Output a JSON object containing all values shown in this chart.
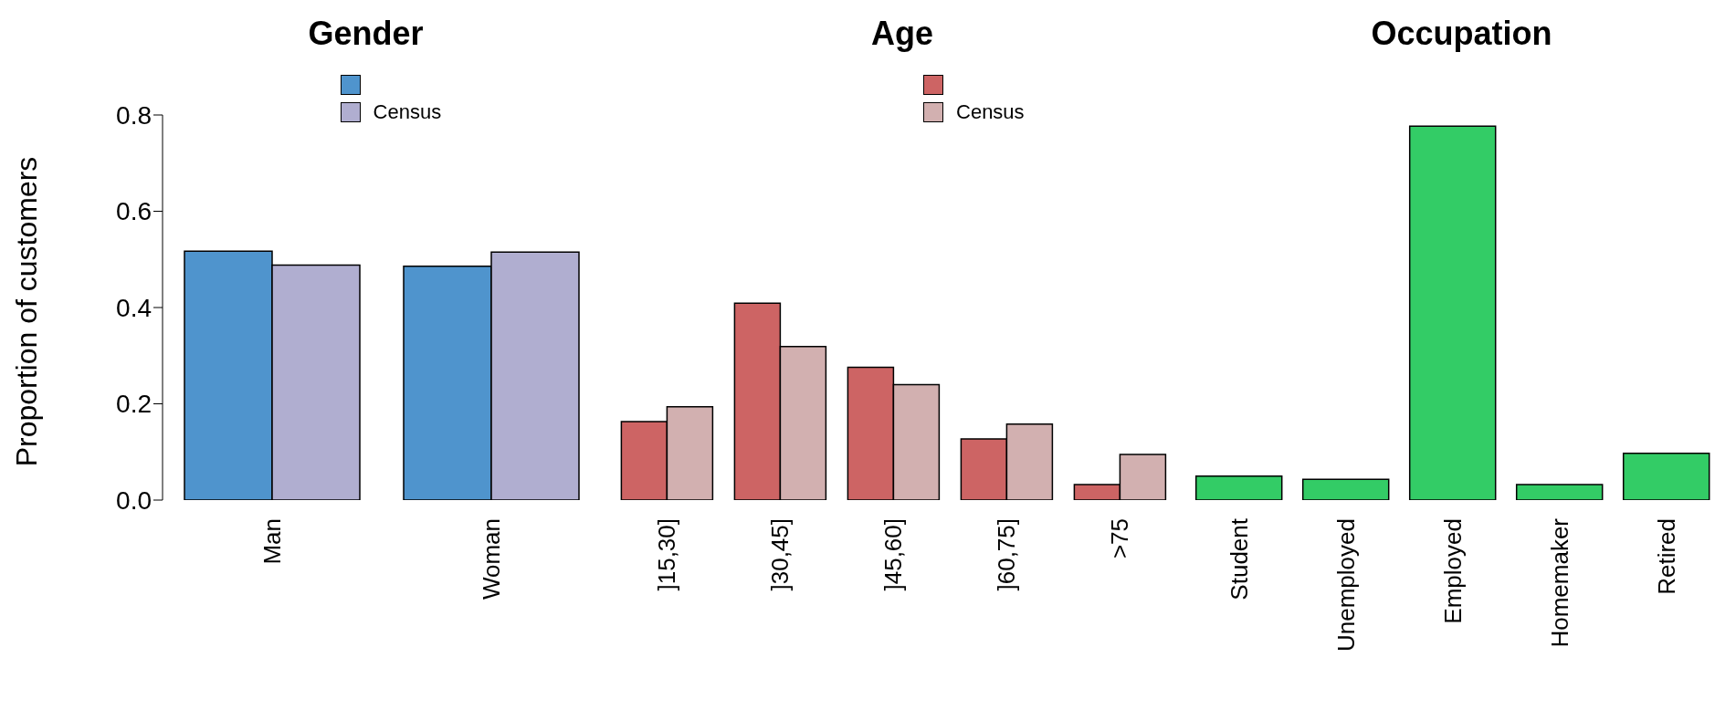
{
  "chart_data": [
    {
      "type": "bar",
      "title": "Gender",
      "ylabel": "Proportion of customers",
      "categories": [
        "Man",
        "Woman"
      ],
      "series": [
        {
          "color": "#4f94cd",
          "values": [
            0.517,
            0.486
          ]
        },
        {
          "name": "Census",
          "color": "#b0aed0",
          "values": [
            0.488,
            0.515
          ]
        }
      ],
      "ylim": [
        0,
        0.8
      ],
      "yticks": [
        {
          "value": 0,
          "label": "0.0"
        },
        0.2,
        0.4,
        0.6,
        0.8
      ],
      "legend": "top right"
    },
    {
      "type": "bar",
      "title": "Age",
      "categories": [
        "]15,30]",
        "]30,45]",
        "]45,60]",
        "]60,75]",
        ">75"
      ],
      "series": [
        {
          "color": "#cd6464",
          "values": [
            0.163,
            0.409,
            0.276,
            0.127,
            0.032
          ]
        },
        {
          "name": "Census",
          "color": "#d2b0b0",
          "values": [
            0.194,
            0.319,
            0.24,
            0.158,
            0.095
          ]
        }
      ],
      "ylim": [
        0,
        0.8
      ],
      "tick_labels": "x",
      "legend": "top right"
    },
    {
      "type": "bar",
      "title": "Occupation",
      "categories": [
        "Student",
        "Unemployed",
        "Employed",
        "Homemaker",
        "Retired"
      ],
      "series": [
        {
          "color": "#33cc66",
          "values": [
            0.05,
            0.043,
            0.777,
            0.032,
            0.097
          ]
        }
      ],
      "ylim": [
        0,
        0.8
      ],
      "tick_labels": "x"
    }
  ]
}
